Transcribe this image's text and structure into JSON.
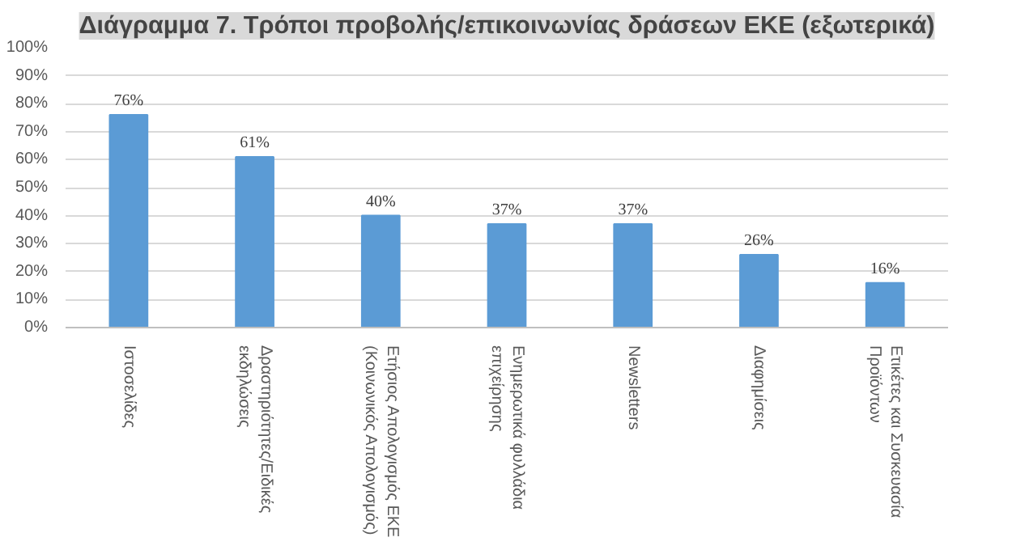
{
  "chart_data": {
    "type": "bar",
    "title": "Διάγραμμα 7. Τρόποι προβολής/επικοινωνίας δράσεων ΕΚΕ (εξωτερικά)",
    "categories": [
      "Ιστοσελίδες",
      "Δραστηριότητες/Ειδικές\nεκδηλώσεις",
      "Ετήσιος Απολογισμός ΕΚΕ\n(Κοινωνικός Απολογισμός)",
      "Ενημερωτικά φυλλάδια\nεπιχείρησης",
      "Newsletters",
      "Διαφημίσεις",
      "Ετικέτες και Συσκευασία\nΠροϊόντων"
    ],
    "values": [
      76,
      61,
      40,
      37,
      37,
      26,
      16
    ],
    "value_labels": [
      "76%",
      "61%",
      "40%",
      "37%",
      "37%",
      "26%",
      "16%"
    ],
    "color": "#5b9bd5",
    "ylim": [
      0,
      100
    ],
    "yticks": [
      {
        "value": 0,
        "label": "0%"
      },
      {
        "value": 10,
        "label": "10%"
      },
      {
        "value": 20,
        "label": "20%"
      },
      {
        "value": 30,
        "label": "30%"
      },
      {
        "value": 40,
        "label": "40%"
      },
      {
        "value": 50,
        "label": "50%"
      },
      {
        "value": 60,
        "label": "60%"
      },
      {
        "value": 70,
        "label": "70%"
      },
      {
        "value": 80,
        "label": "80%"
      },
      {
        "value": 90,
        "label": "90%"
      },
      {
        "value": 100,
        "label": "100%"
      }
    ],
    "grid": "y"
  }
}
